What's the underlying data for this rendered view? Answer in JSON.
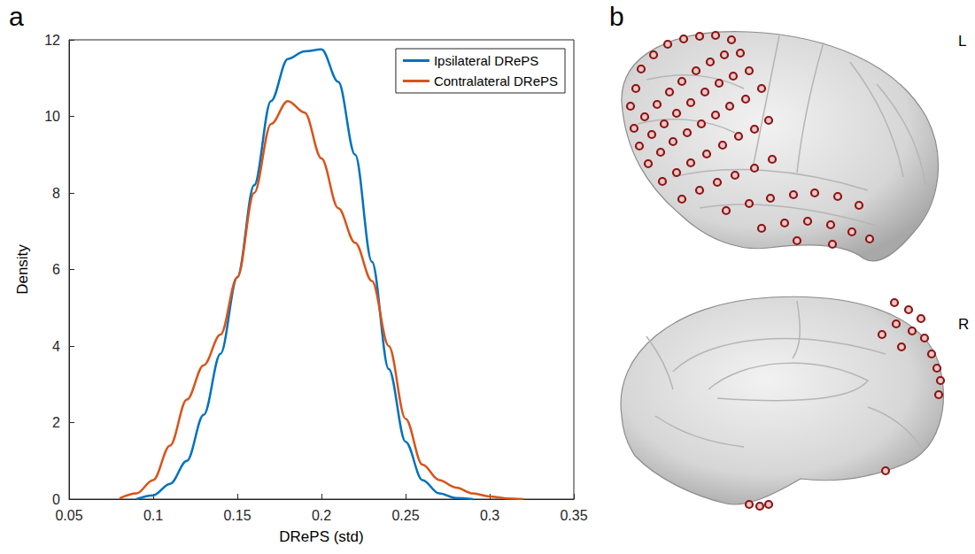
{
  "panel_labels": [
    "a",
    "b"
  ],
  "chart_data": {
    "type": "line",
    "x_label": "DRePS (std)",
    "y_label": "Density",
    "x": [
      0.08,
      0.09,
      0.1,
      0.11,
      0.12,
      0.13,
      0.14,
      0.15,
      0.16,
      0.17,
      0.18,
      0.19,
      0.2,
      0.21,
      0.22,
      0.23,
      0.24,
      0.25,
      0.26,
      0.27,
      0.28,
      0.29,
      0.3,
      0.31,
      0.32
    ],
    "series": [
      {
        "name": "Ipsilateral DRePS",
        "color": "#0072bd",
        "values": [
          null,
          0,
          0.1,
          0.4,
          1.0,
          2.2,
          3.8,
          5.8,
          8.2,
          10.4,
          11.5,
          11.7,
          11.75,
          10.9,
          9.0,
          6.2,
          3.4,
          1.5,
          0.5,
          0.15,
          0.03,
          0,
          null,
          null,
          null
        ]
      },
      {
        "name": "Contralateral DRePS",
        "color": "#d95319",
        "values": [
          0.02,
          0.15,
          0.5,
          1.4,
          2.6,
          3.5,
          4.3,
          5.8,
          8.0,
          9.8,
          10.4,
          10.1,
          8.9,
          7.6,
          6.7,
          5.7,
          4.0,
          2.1,
          0.9,
          0.5,
          0.3,
          0.15,
          0.07,
          0.02,
          0
        ]
      }
    ],
    "xlim": [
      0.05,
      0.35
    ],
    "xticks": [
      0.05,
      0.1,
      0.15,
      0.2,
      0.25,
      0.3,
      0.35
    ],
    "ylim": [
      0,
      12
    ],
    "yticks": [
      0,
      2,
      4,
      6,
      8,
      10,
      12
    ],
    "grid": false,
    "legend": "upper right"
  },
  "panel_b": {
    "hemisphere_labels": [
      "L",
      "R"
    ]
  }
}
